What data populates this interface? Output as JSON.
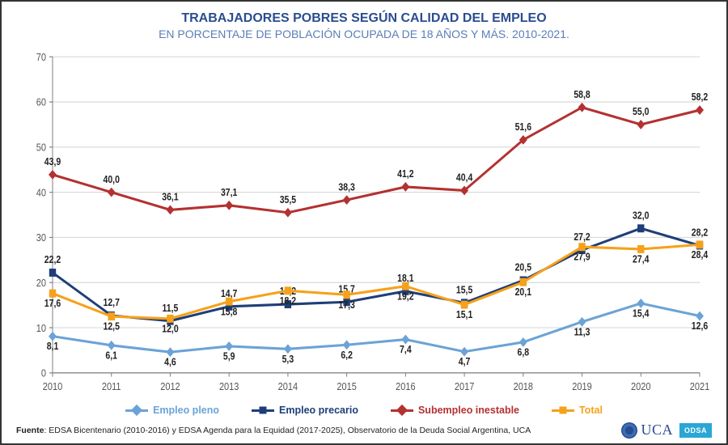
{
  "title": "TRABAJADORES POBRES SEGÚN CALIDAD DEL EMPLEO",
  "subtitle": "EN PORCENTAJE DE POBLACIÓN OCUPADA DE 18 AÑOS Y MÁS. 2010-2021.",
  "source_label": "Fuente",
  "source_text": ": EDSA Bicentenario (2010-2016) y EDSA Agenda para la Equidad (2017-2025), Observatorio de la Deuda Social Argentina, UCA",
  "chart": {
    "type": "line",
    "xlabels": [
      "2010",
      "2011",
      "2012",
      "2013",
      "2014",
      "2015",
      "2016",
      "2017",
      "2018",
      "2019",
      "2020",
      "2021"
    ],
    "ylim": [
      0,
      70
    ],
    "ystep": 10,
    "grid_color": "#d9d9d9",
    "axis_color": "#7f7f7f",
    "background_color": "#ffffff",
    "label_fontsize": 11,
    "datalabel_fontsize": 10.5,
    "series": [
      {
        "name": "Empleo pleno",
        "color": "#6ba3d6",
        "marker": "diamond",
        "values": [
          8.1,
          6.1,
          4.6,
          5.9,
          5.3,
          6.2,
          7.4,
          4.7,
          6.8,
          11.3,
          15.4,
          12.6
        ]
      },
      {
        "name": "Empleo precario",
        "color": "#1f3e78",
        "marker": "square",
        "values": [
          22.2,
          12.7,
          11.5,
          14.7,
          15.2,
          15.7,
          18.1,
          15.5,
          20.5,
          27.2,
          32.0,
          28.2
        ]
      },
      {
        "name": "Subempleo inestable",
        "color": "#b43131",
        "marker": "diamond",
        "values": [
          43.9,
          40.0,
          36.1,
          37.1,
          35.5,
          38.3,
          41.2,
          40.4,
          51.6,
          58.8,
          55.0,
          58.2
        ]
      },
      {
        "name": "Total",
        "color": "#f6a11a",
        "marker": "square",
        "values": [
          17.6,
          12.5,
          12.0,
          15.8,
          18.2,
          17.3,
          19.2,
          15.1,
          20.1,
          27.9,
          27.4,
          28.4
        ]
      }
    ],
    "legend_labels": [
      "Empleo pleno",
      "Empleo precario",
      "Subempleo inestable",
      "Total"
    ],
    "label_offsets": {
      "Empleo pleno": [
        14,
        14,
        14,
        14,
        14,
        14,
        14,
        14,
        14,
        14,
        14,
        14
      ],
      "Empleo precario": [
        -10,
        -10,
        -10,
        -10,
        -10,
        -10,
        -10,
        -10,
        -10,
        -10,
        -10,
        -10
      ],
      "Subempleo inestable": [
        -10,
        -10,
        -10,
        -10,
        -10,
        -10,
        -10,
        -10,
        -10,
        -10,
        -10,
        -10
      ],
      "Total": [
        14,
        14,
        14,
        14,
        14,
        14,
        14,
        14,
        14,
        14,
        14,
        14
      ]
    }
  },
  "logos": {
    "uca": "UCA",
    "odsa": "ODSA"
  }
}
